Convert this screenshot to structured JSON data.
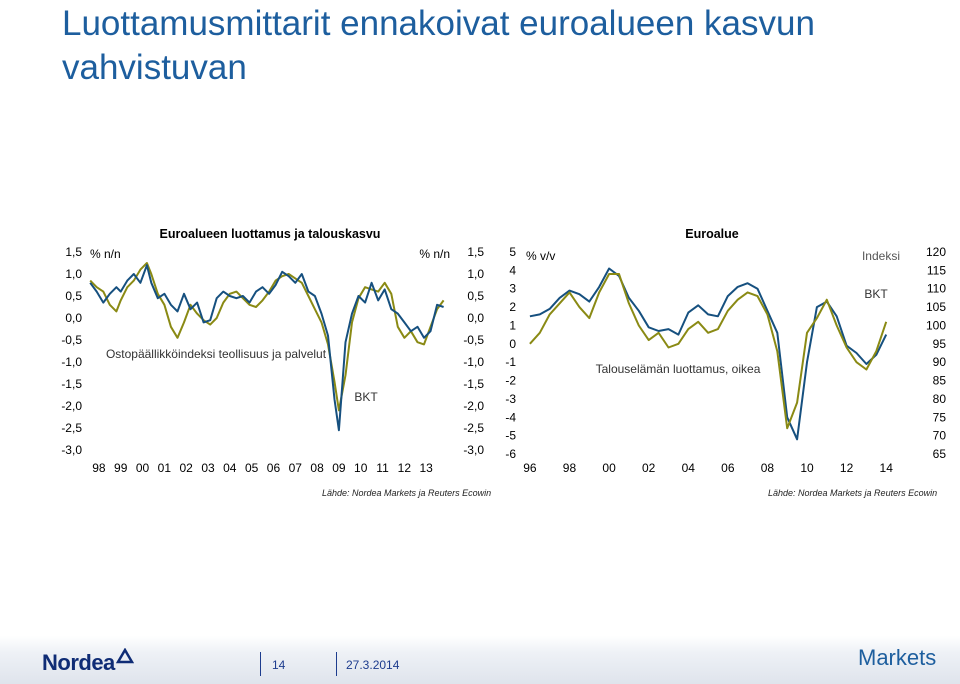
{
  "slide": {
    "title": "Luottamusmittarit ennakoivat euroalueen kasvun vahvistuvan",
    "page_number": "14",
    "date": "27.3.2014",
    "brand": "Nordea",
    "brand_right": "Markets"
  },
  "colors": {
    "title": "#1d5e9e",
    "navy_series": "#16507f",
    "olive_series": "#8a8a14",
    "footer_text": "#1d3c8e"
  },
  "chart_data": [
    {
      "type": "line",
      "title": "Euroalueen luottamus ja talouskasvu",
      "left_axis_unit": "% n/n",
      "right_axis_unit": "% n/n",
      "ylim": [
        -3.0,
        1.5
      ],
      "yticks_left": [
        "1,5",
        "1,0",
        "0,5",
        "0,0",
        "-0,5",
        "-1,0",
        "-1,5",
        "-2,0",
        "-2,5",
        "-3,0"
      ],
      "yticks_right": [
        "1,5",
        "1,0",
        "0,5",
        "0,0",
        "-0,5",
        "-1,0",
        "-1,5",
        "-2,0",
        "-2,5",
        "-3,0"
      ],
      "xlim": [
        1997.5,
        2014.0
      ],
      "xticks": [
        "98",
        "99",
        "00",
        "01",
        "02",
        "03",
        "04",
        "05",
        "06",
        "07",
        "08",
        "09",
        "10",
        "11",
        "12",
        "13"
      ],
      "series": [
        {
          "name": "Ostopäällikköindeksi teollisuus ja palvelut",
          "color": "#8a8a14",
          "x": [
            1997.6,
            1997.9,
            1998.2,
            1998.5,
            1998.8,
            1999.0,
            1999.3,
            1999.6,
            1999.9,
            2000.2,
            2000.4,
            2000.7,
            2001.0,
            2001.3,
            2001.6,
            2001.9,
            2002.2,
            2002.5,
            2002.8,
            2003.1,
            2003.4,
            2003.7,
            2004.0,
            2004.3,
            2004.6,
            2004.9,
            2005.2,
            2005.5,
            2005.8,
            2006.1,
            2006.4,
            2006.7,
            2007.0,
            2007.3,
            2007.6,
            2007.9,
            2008.2,
            2008.5,
            2008.8,
            2009.0,
            2009.3,
            2009.6,
            2009.9,
            2010.2,
            2010.5,
            2010.8,
            2011.1,
            2011.4,
            2011.7,
            2012.0,
            2012.3,
            2012.6,
            2012.9,
            2013.2,
            2013.5,
            2013.8
          ],
          "values": [
            0.85,
            0.7,
            0.6,
            0.3,
            0.15,
            0.4,
            0.7,
            0.85,
            1.1,
            1.25,
            1.0,
            0.55,
            0.3,
            -0.2,
            -0.45,
            -0.1,
            0.3,
            0.1,
            -0.05,
            -0.15,
            0.0,
            0.35,
            0.55,
            0.6,
            0.45,
            0.3,
            0.25,
            0.4,
            0.6,
            0.85,
            0.95,
            1.0,
            0.9,
            0.8,
            0.5,
            0.2,
            -0.1,
            -0.6,
            -1.45,
            -2.1,
            -1.3,
            -0.1,
            0.45,
            0.7,
            0.65,
            0.6,
            0.8,
            0.55,
            -0.2,
            -0.45,
            -0.3,
            -0.55,
            -0.6,
            -0.2,
            0.2,
            0.4
          ]
        },
        {
          "name": "BKT",
          "color": "#16507f",
          "x": [
            1997.6,
            1997.9,
            1998.2,
            1998.5,
            1998.8,
            1999.0,
            1999.3,
            1999.6,
            1999.9,
            2000.2,
            2000.4,
            2000.7,
            2001.0,
            2001.3,
            2001.6,
            2001.9,
            2002.2,
            2002.5,
            2002.8,
            2003.1,
            2003.4,
            2003.7,
            2004.0,
            2004.3,
            2004.6,
            2004.9,
            2005.2,
            2005.5,
            2005.8,
            2006.1,
            2006.4,
            2006.7,
            2007.0,
            2007.3,
            2007.6,
            2007.9,
            2008.2,
            2008.5,
            2008.8,
            2009.0,
            2009.3,
            2009.6,
            2009.9,
            2010.2,
            2010.5,
            2010.8,
            2011.1,
            2011.4,
            2011.7,
            2012.0,
            2012.3,
            2012.6,
            2012.9,
            2013.2,
            2013.5,
            2013.8
          ],
          "values": [
            0.8,
            0.6,
            0.35,
            0.55,
            0.7,
            0.6,
            0.85,
            1.0,
            0.8,
            1.2,
            0.8,
            0.45,
            0.55,
            0.3,
            0.15,
            0.55,
            0.2,
            0.35,
            -0.1,
            -0.05,
            0.45,
            0.6,
            0.5,
            0.45,
            0.5,
            0.35,
            0.6,
            0.7,
            0.55,
            0.75,
            1.05,
            0.95,
            0.8,
            1.0,
            0.6,
            0.5,
            0.1,
            -0.4,
            -1.85,
            -2.55,
            -0.55,
            0.1,
            0.5,
            0.35,
            0.8,
            0.4,
            0.65,
            0.2,
            0.1,
            -0.1,
            -0.3,
            -0.2,
            -0.45,
            -0.3,
            0.3,
            0.25
          ]
        }
      ],
      "annotations": [
        "Ostopäällikköindeksi teollisuus ja palvelut",
        "BKT"
      ],
      "source": "Lähde: Nordea Markets ja Reuters Ecowin"
    },
    {
      "type": "line",
      "title": "Euroalue",
      "left_axis_unit": "% v/v",
      "right_axis_unit": "Indeksi",
      "ylim_left": [
        -6,
        5
      ],
      "ylim_right": [
        65,
        120
      ],
      "yticks_left": [
        "5",
        "4",
        "3",
        "2",
        "1",
        "0",
        "-1",
        "-2",
        "-3",
        "-4",
        "-5",
        "-6"
      ],
      "yticks_right": [
        "120",
        "115",
        "110",
        "105",
        "100",
        "95",
        "90",
        "85",
        "80",
        "75",
        "70",
        "65"
      ],
      "xlim": [
        1995.5,
        2015.0
      ],
      "xticks": [
        "96",
        "98",
        "00",
        "02",
        "04",
        "06",
        "08",
        "10",
        "12",
        "14"
      ],
      "series": [
        {
          "name": "BKT",
          "axis": "left",
          "color": "#16507f",
          "x": [
            1996.0,
            1996.5,
            1997.0,
            1997.5,
            1998.0,
            1998.5,
            1999.0,
            1999.5,
            2000.0,
            2000.5,
            2001.0,
            2001.5,
            2002.0,
            2002.5,
            2003.0,
            2003.5,
            2004.0,
            2004.5,
            2005.0,
            2005.5,
            2006.0,
            2006.5,
            2007.0,
            2007.5,
            2008.0,
            2008.5,
            2009.0,
            2009.5,
            2010.0,
            2010.5,
            2011.0,
            2011.5,
            2012.0,
            2012.5,
            2013.0,
            2013.5,
            2014.0
          ],
          "values": [
            1.5,
            1.6,
            1.9,
            2.5,
            2.9,
            2.7,
            2.3,
            3.1,
            4.1,
            3.7,
            2.5,
            1.8,
            0.9,
            0.7,
            0.8,
            0.5,
            1.7,
            2.1,
            1.6,
            1.5,
            2.6,
            3.1,
            3.3,
            3.0,
            1.8,
            0.6,
            -4.0,
            -5.2,
            -1.0,
            2.0,
            2.3,
            1.5,
            -0.1,
            -0.5,
            -1.1,
            -0.6,
            0.5
          ]
        },
        {
          "name": "Talouselämän luottamus, oikea",
          "axis": "right",
          "color": "#8a8a14",
          "x": [
            1996.0,
            1996.5,
            1997.0,
            1997.5,
            1998.0,
            1998.5,
            1999.0,
            1999.5,
            2000.0,
            2000.5,
            2001.0,
            2001.5,
            2002.0,
            2002.5,
            2003.0,
            2003.5,
            2004.0,
            2004.5,
            2005.0,
            2005.5,
            2006.0,
            2006.5,
            2007.0,
            2007.5,
            2008.0,
            2008.5,
            2009.0,
            2009.5,
            2010.0,
            2010.5,
            2011.0,
            2011.5,
            2012.0,
            2012.5,
            2013.0,
            2013.5,
            2014.0
          ],
          "values": [
            95,
            98,
            103,
            106,
            109,
            105,
            102,
            109,
            114,
            114,
            106,
            100,
            96,
            98,
            94,
            95,
            99,
            101,
            98,
            99,
            104,
            107,
            109,
            108,
            103,
            93,
            72,
            79,
            98,
            102,
            107,
            100,
            94,
            90,
            88,
            93,
            101
          ]
        }
      ],
      "annotations": [
        "Talouselämän luottamus, oikea",
        "BKT"
      ],
      "source": "Lähde: Nordea Markets ja Reuters Ecowin"
    }
  ]
}
